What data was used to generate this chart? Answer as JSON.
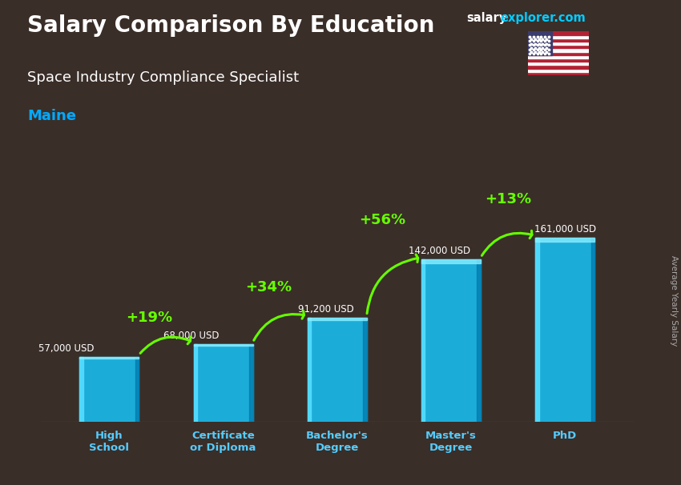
{
  "title_main": "Salary Comparison By Education",
  "title_sub": "Space Industry Compliance Specialist",
  "title_location": "Maine",
  "watermark_salary": "salary",
  "watermark_rest": "explorer.com",
  "ylabel": "Average Yearly Salary",
  "categories": [
    "High\nSchool",
    "Certificate\nor Diploma",
    "Bachelor's\nDegree",
    "Master's\nDegree",
    "PhD"
  ],
  "values": [
    57000,
    68000,
    91200,
    142000,
    161000
  ],
  "value_labels": [
    "57,000 USD",
    "68,000 USD",
    "91,200 USD",
    "142,000 USD",
    "161,000 USD"
  ],
  "pct_labels": [
    "+19%",
    "+34%",
    "+56%",
    "+13%"
  ],
  "bar_color": "#1ab8e8",
  "bar_edge_color": "#00d4ff",
  "bar_dark": "#0077aa",
  "bg_color": "#3a2e28",
  "text_color": "#ffffff",
  "green_color": "#66ff00",
  "salary_text_color": "#ffffff",
  "location_color": "#00aaff",
  "watermark_color": "#00ccff",
  "ylim": [
    0,
    220000
  ],
  "bar_width": 0.52
}
